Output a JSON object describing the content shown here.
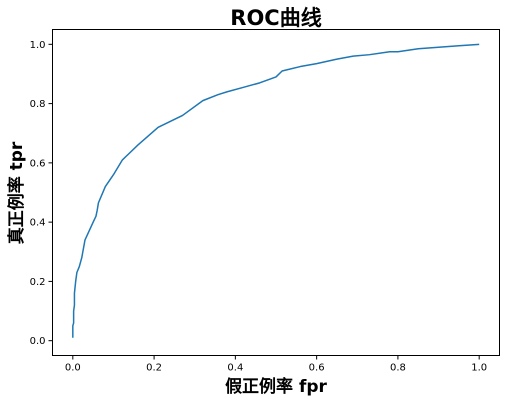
{
  "chart_data": {
    "type": "line",
    "title": "ROC曲线",
    "xlabel": "假正例率 fpr",
    "ylabel": "真正例率 tpr",
    "xlim": [
      -0.05,
      1.05
    ],
    "ylim": [
      -0.05,
      1.05
    ],
    "xticks": [
      0.0,
      0.2,
      0.4,
      0.6,
      0.8,
      1.0
    ],
    "yticks": [
      0.0,
      0.2,
      0.4,
      0.6,
      0.8,
      1.0
    ],
    "xtick_labels": [
      "0.0",
      "0.2",
      "0.4",
      "0.6",
      "0.8",
      "1.0"
    ],
    "ytick_labels": [
      "0.0",
      "0.2",
      "0.4",
      "0.6",
      "0.8",
      "1.0"
    ],
    "grid": false,
    "line_color": "#1f77b4",
    "series": [
      {
        "x": [
          0.0,
          0.0,
          0.002,
          0.002,
          0.004,
          0.004,
          0.007,
          0.01,
          0.016,
          0.022,
          0.03,
          0.05,
          0.057,
          0.06,
          0.063,
          0.08,
          0.1,
          0.122,
          0.16,
          0.21,
          0.27,
          0.32,
          0.357,
          0.38,
          0.42,
          0.46,
          0.5,
          0.515,
          0.53,
          0.56,
          0.6,
          0.65,
          0.69,
          0.73,
          0.78,
          0.8,
          0.85,
          0.9,
          0.95,
          1.0
        ],
        "y": [
          0.01,
          0.05,
          0.06,
          0.1,
          0.12,
          0.16,
          0.2,
          0.23,
          0.25,
          0.28,
          0.34,
          0.4,
          0.42,
          0.44,
          0.465,
          0.52,
          0.56,
          0.61,
          0.66,
          0.72,
          0.76,
          0.81,
          0.83,
          0.84,
          0.855,
          0.87,
          0.89,
          0.91,
          0.915,
          0.925,
          0.935,
          0.95,
          0.96,
          0.965,
          0.975,
          0.975,
          0.985,
          0.99,
          0.995,
          1.0
        ]
      }
    ]
  }
}
